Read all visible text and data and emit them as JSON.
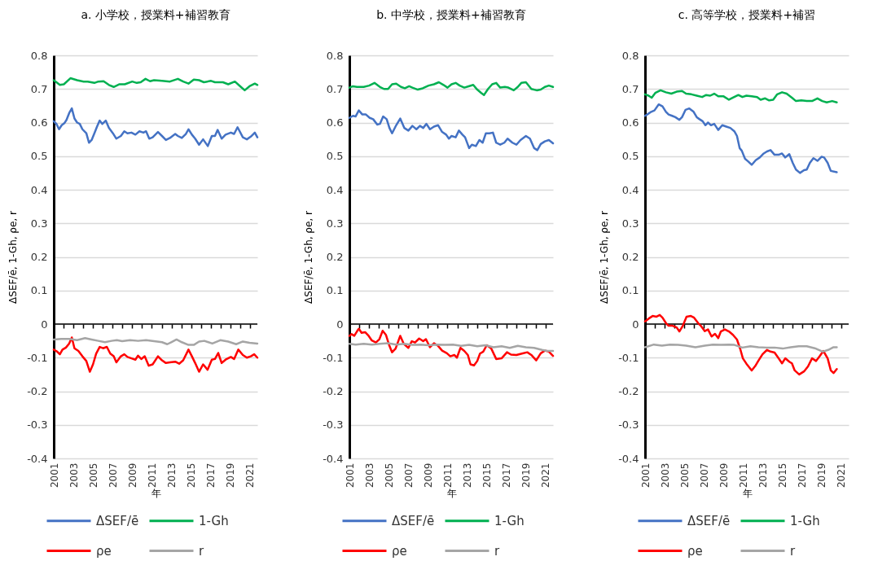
{
  "chart_data": [
    {
      "type": "line",
      "title": "a. 小学校，授業料+補習教育",
      "xlabel": "年",
      "ylabel": "ΔSEF/ē, 1-Gh, ρe, r",
      "series": [
        {
          "name": "ΔSEF/ē",
          "color": "#4472c4",
          "x": [
            2001,
            2001.27,
            2001.54,
            2001.81,
            2002.08,
            2002.3,
            2002.57,
            2002.84,
            2003.11,
            2003.38,
            2003.65,
            2003.92,
            2004.32,
            2004.59,
            2004.86,
            2005.14,
            2005.41,
            2005.68,
            2005.95,
            2006.3,
            2006.62,
            2007.03,
            2007.38,
            2007.84,
            2008.19,
            2008.51,
            2008.92,
            2009.32,
            2009.73,
            2010.14,
            2010.41,
            2010.73,
            2011.08,
            2011.62,
            2012.03,
            2012.43,
            2012.84,
            2013.38,
            2013.65,
            2014.05,
            2014.46,
            2014.73,
            2015.08,
            2015.41,
            2015.81,
            2016.22,
            2016.7,
            2017.11,
            2017.43,
            2017.7,
            2018.11,
            2018.51,
            2019.05,
            2019.38,
            2019.73,
            2020.27,
            2020.68,
            2021.08,
            2021.49,
            2021.75
          ],
          "values": [
            0.604,
            0.596,
            0.58,
            0.592,
            0.598,
            0.608,
            0.628,
            0.642,
            0.612,
            0.6,
            0.596,
            0.58,
            0.568,
            0.54,
            0.548,
            0.568,
            0.588,
            0.606,
            0.596,
            0.606,
            0.584,
            0.568,
            0.552,
            0.56,
            0.574,
            0.568,
            0.57,
            0.564,
            0.574,
            0.57,
            0.574,
            0.552,
            0.556,
            0.572,
            0.56,
            0.548,
            0.554,
            0.566,
            0.56,
            0.554,
            0.566,
            0.58,
            0.564,
            0.552,
            0.534,
            0.55,
            0.53,
            0.56,
            0.56,
            0.578,
            0.552,
            0.564,
            0.57,
            0.566,
            0.586,
            0.556,
            0.55,
            0.558,
            0.57,
            0.556
          ]
        },
        {
          "name": "1-Gh",
          "color": "#00b050",
          "x": [
            2001,
            2001.62,
            2002.03,
            2002.7,
            2003.38,
            2004.05,
            2004.46,
            2005.14,
            2005.54,
            2006.08,
            2006.62,
            2007.11,
            2007.7,
            2008.24,
            2009,
            2009.46,
            2009.86,
            2010.35,
            2010.81,
            2011.22,
            2012.03,
            2012.84,
            2013.65,
            2014.19,
            2014.73,
            2015.27,
            2015.81,
            2016.3,
            2017.03,
            2017.43,
            2018.24,
            2018.78,
            2019.46,
            2020,
            2020.46,
            2020.95,
            2021.49,
            2021.75
          ],
          "values": [
            0.726,
            0.712,
            0.714,
            0.732,
            0.726,
            0.722,
            0.722,
            0.718,
            0.722,
            0.723,
            0.712,
            0.706,
            0.714,
            0.714,
            0.722,
            0.718,
            0.72,
            0.73,
            0.723,
            0.726,
            0.724,
            0.722,
            0.73,
            0.722,
            0.716,
            0.728,
            0.726,
            0.72,
            0.724,
            0.72,
            0.72,
            0.714,
            0.722,
            0.708,
            0.696,
            0.708,
            0.716,
            0.712
          ]
        },
        {
          "name": "ρe",
          "color": "#ff0000",
          "x": [
            2001,
            2001.35,
            2001.62,
            2001.89,
            2002.24,
            2002.57,
            2002.84,
            2003.11,
            2003.51,
            2003.92,
            2004.32,
            2004.68,
            2005,
            2005.32,
            2005.68,
            2006.03,
            2006.41,
            2006.76,
            2007.11,
            2007.38,
            2007.84,
            2008.19,
            2008.51,
            2008.92,
            2009.32,
            2009.59,
            2009.92,
            2010.27,
            2010.68,
            2011.08,
            2011.62,
            2012.03,
            2012.43,
            2012.84,
            2013.38,
            2013.78,
            2014.19,
            2014.73,
            2015.08,
            2015.41,
            2015.81,
            2016.22,
            2016.68,
            2017.11,
            2017.43,
            2017.76,
            2018.11,
            2018.51,
            2019.05,
            2019.38,
            2019.81,
            2020.27,
            2020.68,
            2021.08,
            2021.43,
            2021.75
          ],
          "values": [
            -0.076,
            -0.082,
            -0.09,
            -0.076,
            -0.07,
            -0.058,
            -0.04,
            -0.072,
            -0.08,
            -0.096,
            -0.11,
            -0.142,
            -0.12,
            -0.088,
            -0.068,
            -0.072,
            -0.068,
            -0.088,
            -0.096,
            -0.114,
            -0.096,
            -0.09,
            -0.098,
            -0.102,
            -0.106,
            -0.094,
            -0.104,
            -0.096,
            -0.124,
            -0.12,
            -0.096,
            -0.108,
            -0.116,
            -0.114,
            -0.112,
            -0.118,
            -0.108,
            -0.076,
            -0.096,
            -0.116,
            -0.142,
            -0.12,
            -0.136,
            -0.106,
            -0.104,
            -0.086,
            -0.116,
            -0.106,
            -0.098,
            -0.104,
            -0.076,
            -0.092,
            -0.1,
            -0.096,
            -0.09,
            -0.1
          ]
        },
        {
          "name": "r",
          "color": "#a5a5a5",
          "x": [
            2001,
            2001.76,
            2002.57,
            2003.38,
            2004.19,
            2004.86,
            2005.54,
            2006.22,
            2006.89,
            2007.43,
            2007.97,
            2008.78,
            2009.59,
            2010.41,
            2011.22,
            2012.03,
            2012.57,
            2012.97,
            2013.51,
            2014.05,
            2014.73,
            2015.27,
            2015.81,
            2016.35,
            2017.16,
            2017.97,
            2018.78,
            2019.59,
            2020.27,
            2020.95,
            2021.75
          ],
          "values": [
            -0.046,
            -0.044,
            -0.044,
            -0.048,
            -0.042,
            -0.046,
            -0.05,
            -0.054,
            -0.05,
            -0.048,
            -0.051,
            -0.048,
            -0.05,
            -0.048,
            -0.051,
            -0.054,
            -0.06,
            -0.054,
            -0.046,
            -0.054,
            -0.062,
            -0.062,
            -0.052,
            -0.05,
            -0.058,
            -0.048,
            -0.052,
            -0.06,
            -0.052,
            -0.056,
            -0.058
          ]
        }
      ],
      "xlim": [
        2001,
        2021.75
      ],
      "xticks": [
        2001,
        {
          "value": 2002,
          "label": null
        },
        2003,
        {
          "value": 2004,
          "label": null
        },
        2005,
        {
          "value": 2006,
          "label": null
        },
        2007,
        {
          "value": 2008,
          "label": null
        },
        2009,
        {
          "value": 2010,
          "label": null
        },
        2011,
        {
          "value": 2012,
          "label": null
        },
        2013,
        {
          "value": 2014,
          "label": null
        },
        2015,
        {
          "value": 2016,
          "label": null
        },
        2017,
        {
          "value": 2018,
          "label": null
        },
        2019,
        {
          "value": 2020,
          "label": null
        },
        2021
      ],
      "ylim": [
        -0.4,
        0.8
      ],
      "yticks": [
        -0.4,
        -0.3,
        -0.2,
        -0.1,
        0,
        0.1,
        0.2,
        0.3,
        0.4,
        0.5,
        0.6,
        0.7,
        0.8
      ],
      "grid": "y",
      "legend": "bottom",
      "ref_lines": [
        {
          "axis": "y",
          "value": 0,
          "color": "#000000"
        }
      ]
    },
    {
      "type": "line",
      "title": "b. 中学校，授業料+補習教育",
      "xlabel": "年",
      "ylabel": "ΔSEF/ē, 1-Gh, ρe, r",
      "series": [
        {
          "name": "ΔSEF/ē",
          "color": "#4472c4",
          "x": [
            2001,
            2001.36,
            2001.63,
            2001.96,
            2002.32,
            2002.68,
            2003.07,
            2003.42,
            2003.84,
            2004.11,
            2004.44,
            2004.8,
            2005.08,
            2005.35,
            2005.77,
            2006.18,
            2006.59,
            2007.01,
            2007.42,
            2007.83,
            2008.19,
            2008.52,
            2008.85,
            2009.21,
            2009.62,
            2010.04,
            2010.45,
            2010.86,
            2011.14,
            2011.41,
            2011.83,
            2012.16,
            2012.52,
            2012.79,
            2013.2,
            2013.48,
            2013.89,
            2014.25,
            2014.58,
            2014.91,
            2015.27,
            2015.63,
            2015.96,
            2016.37,
            2016.79,
            2017.12,
            2017.61,
            2018.02,
            2018.44,
            2018.99,
            2019.4,
            2019.82,
            2020.15,
            2020.5,
            2020.92,
            2021.33,
            2021.75
          ],
          "values": [
            0.614,
            0.62,
            0.618,
            0.636,
            0.624,
            0.624,
            0.614,
            0.61,
            0.594,
            0.596,
            0.618,
            0.61,
            0.584,
            0.568,
            0.592,
            0.612,
            0.584,
            0.576,
            0.59,
            0.58,
            0.59,
            0.584,
            0.596,
            0.58,
            0.588,
            0.592,
            0.572,
            0.564,
            0.552,
            0.56,
            0.556,
            0.576,
            0.564,
            0.556,
            0.524,
            0.534,
            0.53,
            0.548,
            0.54,
            0.568,
            0.568,
            0.57,
            0.54,
            0.534,
            0.54,
            0.552,
            0.54,
            0.534,
            0.548,
            0.56,
            0.552,
            0.524,
            0.518,
            0.536,
            0.544,
            0.548,
            0.538
          ]
        },
        {
          "name": "1-Gh",
          "color": "#00b050",
          "x": [
            2001,
            2001.36,
            2001.77,
            2002.46,
            2003.01,
            2003.56,
            2004.11,
            2004.53,
            2004.94,
            2005.35,
            2005.77,
            2006.26,
            2006.65,
            2007.09,
            2007.42,
            2007.97,
            2008.47,
            2009.07,
            2009.62,
            2010.12,
            2010.59,
            2011,
            2011.41,
            2011.83,
            2012.24,
            2012.71,
            2013.15,
            2013.62,
            2014.03,
            2014.44,
            2014.72,
            2015.13,
            2015.55,
            2015.96,
            2016.37,
            2016.84,
            2017.2,
            2017.75,
            2018.16,
            2018.52,
            2018.99,
            2019.54,
            2020.09,
            2020.5,
            2020.92,
            2021.33,
            2021.75
          ],
          "values": [
            0.704,
            0.708,
            0.706,
            0.706,
            0.71,
            0.718,
            0.706,
            0.7,
            0.7,
            0.714,
            0.716,
            0.706,
            0.702,
            0.708,
            0.704,
            0.698,
            0.702,
            0.71,
            0.714,
            0.72,
            0.712,
            0.704,
            0.714,
            0.718,
            0.71,
            0.704,
            0.708,
            0.712,
            0.698,
            0.688,
            0.682,
            0.7,
            0.714,
            0.718,
            0.704,
            0.706,
            0.704,
            0.696,
            0.706,
            0.718,
            0.72,
            0.7,
            0.696,
            0.698,
            0.706,
            0.71,
            0.706
          ]
        },
        {
          "name": "ρe",
          "color": "#ff0000",
          "x": [
            2001,
            2001.22,
            2001.5,
            2001.77,
            2001.96,
            2002.24,
            2002.6,
            2002.96,
            2003.29,
            2003.7,
            2004.06,
            2004.39,
            2004.72,
            2005.08,
            2005.35,
            2005.71,
            2006.18,
            2006.54,
            2007.01,
            2007.36,
            2007.69,
            2008.11,
            2008.52,
            2008.8,
            2009.21,
            2009.62,
            2010.04,
            2010.45,
            2010.94,
            2011.28,
            2011.69,
            2011.96,
            2012.32,
            2012.71,
            2013.07,
            2013.34,
            2013.7,
            2014.03,
            2014.31,
            2014.64,
            2015,
            2015.46,
            2015.96,
            2016.51,
            2017.06,
            2017.47,
            2018.02,
            2018.58,
            2019.13,
            2019.54,
            2020.04,
            2020.5,
            2020.92,
            2021.33,
            2021.75
          ],
          "values": [
            -0.035,
            -0.03,
            -0.035,
            -0.022,
            -0.014,
            -0.026,
            -0.024,
            -0.035,
            -0.049,
            -0.055,
            -0.045,
            -0.02,
            -0.032,
            -0.065,
            -0.084,
            -0.073,
            -0.035,
            -0.059,
            -0.071,
            -0.051,
            -0.055,
            -0.043,
            -0.051,
            -0.045,
            -0.069,
            -0.057,
            -0.065,
            -0.079,
            -0.087,
            -0.096,
            -0.092,
            -0.1,
            -0.071,
            -0.08,
            -0.092,
            -0.12,
            -0.123,
            -0.11,
            -0.088,
            -0.082,
            -0.063,
            -0.073,
            -0.104,
            -0.102,
            -0.084,
            -0.091,
            -0.092,
            -0.088,
            -0.084,
            -0.092,
            -0.108,
            -0.087,
            -0.079,
            -0.082,
            -0.095
          ]
        },
        {
          "name": "r",
          "color": "#a5a5a5",
          "x": [
            2001,
            2001.63,
            2002.46,
            2003.29,
            2004.11,
            2004.94,
            2005.77,
            2006.59,
            2007.42,
            2008.25,
            2009.07,
            2009.9,
            2010.72,
            2011.55,
            2012.38,
            2013.2,
            2014.03,
            2014.86,
            2015.68,
            2016.51,
            2017.34,
            2018.16,
            2018.99,
            2019.82,
            2020.64,
            2021.19,
            2021.75
          ],
          "values": [
            -0.059,
            -0.061,
            -0.059,
            -0.061,
            -0.059,
            -0.057,
            -0.061,
            -0.059,
            -0.062,
            -0.061,
            -0.063,
            -0.061,
            -0.062,
            -0.061,
            -0.065,
            -0.062,
            -0.066,
            -0.063,
            -0.069,
            -0.066,
            -0.071,
            -0.065,
            -0.069,
            -0.071,
            -0.077,
            -0.08,
            -0.08
          ]
        }
      ],
      "xlim": [
        2001,
        2021.75
      ],
      "xticks": [
        2001,
        {
          "value": 2002,
          "label": null
        },
        2003,
        {
          "value": 2004,
          "label": null
        },
        2005,
        {
          "value": 2006,
          "label": null
        },
        2007,
        {
          "value": 2008,
          "label": null
        },
        2009,
        {
          "value": 2010,
          "label": null
        },
        2011,
        {
          "value": 2012,
          "label": null
        },
        2013,
        {
          "value": 2014,
          "label": null
        },
        2015,
        {
          "value": 2016,
          "label": null
        },
        2017,
        {
          "value": 2018,
          "label": null
        },
        2019,
        {
          "value": 2020,
          "label": null
        },
        2021
      ],
      "ylim": [
        -0.4,
        0.8
      ],
      "yticks": [
        -0.4,
        -0.3,
        -0.2,
        -0.1,
        0,
        0.1,
        0.2,
        0.3,
        0.4,
        0.5,
        0.6,
        0.7,
        0.8
      ],
      "grid": "y",
      "legend": "bottom",
      "ref_lines": [
        {
          "axis": "y",
          "value": 0,
          "color": "#000000"
        }
      ]
    },
    {
      "type": "line",
      "title": "c. 高等学校，授業料+補習",
      "xlabel": "年",
      "ylabel": "ΔSEF/ē, 1-Gh, ρe, r",
      "series": [
        {
          "name": "ΔSEF/ē",
          "color": "#4472c4",
          "x": [
            2001,
            2001.22,
            2001.63,
            2001.96,
            2002.39,
            2002.78,
            2003.13,
            2003.4,
            2003.76,
            2004.09,
            2004.5,
            2004.77,
            2005.13,
            2005.51,
            2005.95,
            2006.27,
            2006.55,
            2006.87,
            2007.15,
            2007.42,
            2007.72,
            2008.05,
            2008.46,
            2008.87,
            2009.28,
            2009.69,
            2010.1,
            2010.37,
            2010.64,
            2010.86,
            2011.19,
            2011.52,
            2011.87,
            2012.28,
            2012.69,
            2013.1,
            2013.43,
            2013.79,
            2014.2,
            2014.61,
            2014.96,
            2015.29,
            2015.7,
            2016.05,
            2016.38,
            2016.79,
            2017.2,
            2017.48,
            2017.8,
            2018.16,
            2018.57,
            2018.98,
            2019.25,
            2019.61,
            2019.93,
            2020.54
          ],
          "values": [
            0.62,
            0.624,
            0.632,
            0.636,
            0.654,
            0.648,
            0.632,
            0.624,
            0.62,
            0.616,
            0.608,
            0.616,
            0.638,
            0.642,
            0.632,
            0.616,
            0.61,
            0.604,
            0.592,
            0.6,
            0.592,
            0.596,
            0.578,
            0.592,
            0.588,
            0.584,
            0.574,
            0.56,
            0.524,
            0.516,
            0.492,
            0.484,
            0.474,
            0.488,
            0.496,
            0.508,
            0.514,
            0.518,
            0.504,
            0.504,
            0.508,
            0.496,
            0.506,
            0.48,
            0.46,
            0.45,
            0.458,
            0.46,
            0.48,
            0.494,
            0.486,
            0.498,
            0.496,
            0.48,
            0.456,
            0.452
          ]
        },
        {
          "name": "1-Gh",
          "color": "#00b050",
          "x": [
            2001,
            2001.36,
            2001.68,
            2002.04,
            2002.58,
            2003.13,
            2003.68,
            2004.22,
            2004.77,
            2005.18,
            2005.73,
            2006.27,
            2006.82,
            2007.23,
            2007.64,
            2008.05,
            2008.46,
            2009.01,
            2009.55,
            2009.96,
            2010.51,
            2010.92,
            2011.33,
            2011.87,
            2012.42,
            2012.78,
            2013.24,
            2013.65,
            2014.06,
            2014.47,
            2014.96,
            2015.43,
            2015.97,
            2016.38,
            2016.93,
            2017.48,
            2018.02,
            2018.57,
            2019.06,
            2019.52,
            2020.07,
            2020.54
          ],
          "values": [
            0.684,
            0.68,
            0.674,
            0.688,
            0.696,
            0.69,
            0.686,
            0.692,
            0.694,
            0.686,
            0.684,
            0.68,
            0.676,
            0.682,
            0.68,
            0.686,
            0.678,
            0.678,
            0.668,
            0.674,
            0.682,
            0.676,
            0.68,
            0.678,
            0.676,
            0.668,
            0.672,
            0.666,
            0.668,
            0.684,
            0.69,
            0.686,
            0.674,
            0.664,
            0.666,
            0.664,
            0.664,
            0.672,
            0.664,
            0.66,
            0.664,
            0.66
          ]
        },
        {
          "name": "ρe",
          "color": "#ff0000",
          "x": [
            2001,
            2001.36,
            2001.77,
            2002.17,
            2002.5,
            2002.78,
            2003.13,
            2003.4,
            2003.81,
            2004.22,
            2004.5,
            2004.85,
            2005.23,
            2005.67,
            2006,
            2006.41,
            2006.68,
            2007.09,
            2007.42,
            2007.78,
            2008.13,
            2008.46,
            2008.73,
            2009.14,
            2009.55,
            2009.96,
            2010.37,
            2010.7,
            2010.97,
            2011.33,
            2011.87,
            2012.23,
            2012.56,
            2012.97,
            2013.43,
            2013.79,
            2014.2,
            2014.61,
            2014.96,
            2015.29,
            2015.7,
            2015.97,
            2016.25,
            2016.71,
            2017.2,
            2017.61,
            2018.02,
            2018.43,
            2018.84,
            2019.17,
            2019.61,
            2019.93,
            2020.21,
            2020.54
          ],
          "values": [
            0.008,
            0.016,
            0.024,
            0.022,
            0.027,
            0.019,
            0.003,
            -0.005,
            -0.005,
            -0.01,
            -0.022,
            -0.005,
            0.022,
            0.024,
            0.019,
            0.003,
            -0.005,
            -0.021,
            -0.016,
            -0.037,
            -0.029,
            -0.042,
            -0.022,
            -0.016,
            -0.022,
            -0.032,
            -0.046,
            -0.074,
            -0.102,
            -0.118,
            -0.138,
            -0.125,
            -0.109,
            -0.09,
            -0.077,
            -0.082,
            -0.085,
            -0.102,
            -0.117,
            -0.102,
            -0.112,
            -0.117,
            -0.138,
            -0.15,
            -0.141,
            -0.126,
            -0.102,
            -0.11,
            -0.094,
            -0.08,
            -0.102,
            -0.138,
            -0.146,
            -0.134
          ]
        },
        {
          "name": "r",
          "color": "#a5a5a5",
          "x": [
            2001,
            2001.9,
            2002.72,
            2003.54,
            2004.36,
            2005.18,
            2006.14,
            2007.09,
            2007.91,
            2008.73,
            2009.55,
            2010.1,
            2010.92,
            2011.74,
            2012.56,
            2013.38,
            2014.2,
            2015.02,
            2015.84,
            2016.66,
            2017.48,
            2018.3,
            2019.11,
            2019.66,
            2020.21,
            2020.54
          ],
          "values": [
            -0.069,
            -0.061,
            -0.064,
            -0.061,
            -0.062,
            -0.064,
            -0.069,
            -0.064,
            -0.061,
            -0.062,
            -0.061,
            -0.062,
            -0.07,
            -0.066,
            -0.069,
            -0.07,
            -0.07,
            -0.073,
            -0.069,
            -0.066,
            -0.066,
            -0.072,
            -0.082,
            -0.077,
            -0.069,
            -0.069
          ]
        }
      ],
      "xlim": [
        2001,
        2021.75
      ],
      "xticks": [
        2001,
        {
          "value": 2002,
          "label": null
        },
        2003,
        {
          "value": 2004,
          "label": null
        },
        2005,
        {
          "value": 2006,
          "label": null
        },
        2007,
        {
          "value": 2008,
          "label": null
        },
        2009,
        {
          "value": 2010,
          "label": null
        },
        2011,
        {
          "value": 2012,
          "label": null
        },
        2013,
        {
          "value": 2014,
          "label": null
        },
        2015,
        {
          "value": 2016,
          "label": null
        },
        2017,
        {
          "value": 2018,
          "label": null
        },
        2019,
        {
          "value": 2020,
          "label": null
        },
        2021
      ],
      "ylim": [
        -0.4,
        0.8
      ],
      "yticks": [
        -0.4,
        -0.3,
        -0.2,
        -0.1,
        0,
        0.1,
        0.2,
        0.3,
        0.4,
        0.5,
        0.6,
        0.7,
        0.8
      ],
      "grid": "y",
      "legend": "bottom",
      "ref_lines": [
        {
          "axis": "y",
          "value": 0,
          "color": "#000000"
        }
      ]
    }
  ]
}
